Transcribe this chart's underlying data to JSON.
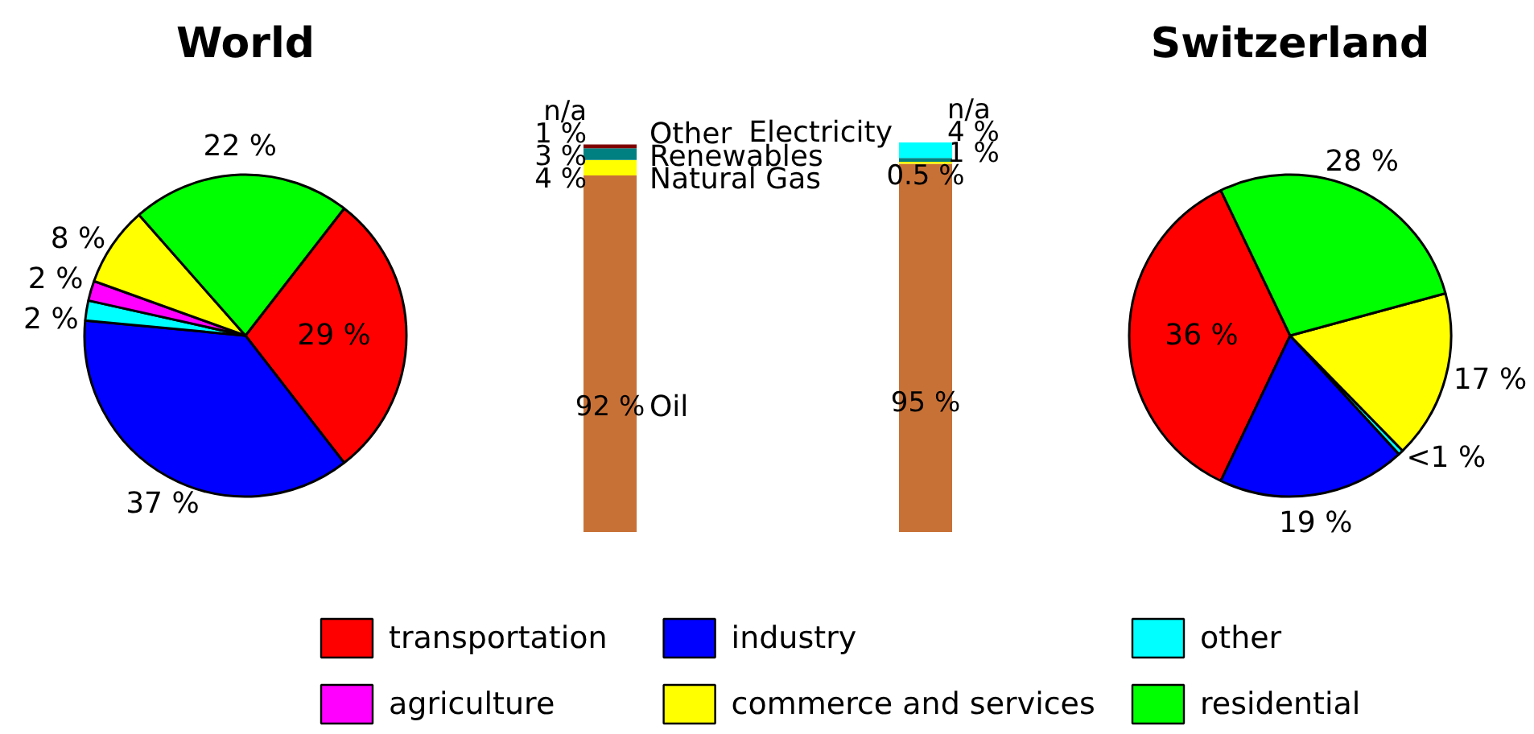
{
  "chart_data": [
    {
      "type": "pie",
      "categories": [
        "transportation",
        "industry",
        "other",
        "agriculture",
        "commerce and services",
        "residential"
      ],
      "colors": [
        "#ff0000",
        "#0000ff",
        "#00ffff",
        "#ff00ff",
        "#ffff00",
        "#00ff00"
      ],
      "legend": "bottom",
      "series": [
        {
          "name": "World",
          "values": [
            29,
            37,
            2,
            2,
            8,
            22
          ],
          "value_labels": [
            "29 %",
            "37 %",
            "2 %",
            "2 %",
            "8 %",
            "22 %"
          ]
        },
        {
          "name": "Switzerland",
          "values": [
            36,
            19,
            0.5,
            null,
            17,
            28
          ],
          "value_labels": [
            "36 %",
            "19 %",
            "<1 %",
            null,
            "17 %",
            "28 %"
          ]
        }
      ]
    },
    {
      "type": "bar",
      "stacked": true,
      "categories": [
        null,
        null
      ],
      "series": [
        {
          "name": "Oil",
          "color": "#c87137",
          "values": [
            92,
            95
          ],
          "value_labels": [
            "92 %",
            "95 %"
          ]
        },
        {
          "name": "Natural Gas",
          "color": "#ffff00",
          "values": [
            4,
            0.5
          ],
          "value_labels": [
            "4 %",
            "0.5 %"
          ]
        },
        {
          "name": "Renewables",
          "color": "#008080",
          "values": [
            3,
            1
          ],
          "value_labels": [
            "3 %",
            "1 %"
          ]
        },
        {
          "name": "Electricity",
          "color": "#00ffff",
          "values": [
            null,
            4
          ],
          "value_labels": [
            "n/a",
            "4 %"
          ]
        },
        {
          "name": "Other",
          "color": "#800000",
          "values": [
            1,
            null
          ],
          "value_labels": [
            "1 %",
            "n/a"
          ]
        }
      ]
    }
  ]
}
